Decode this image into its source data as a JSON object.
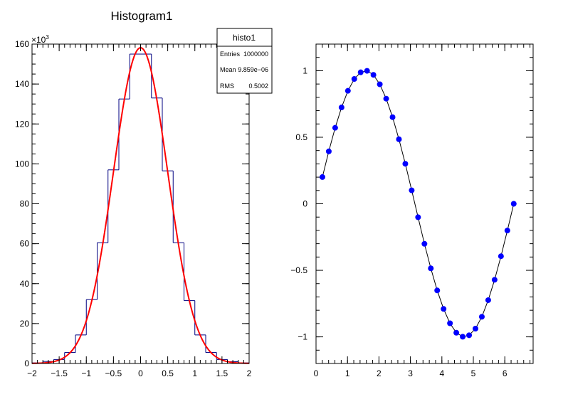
{
  "chart_data": [
    {
      "type": "bar",
      "title": "Histogram1",
      "histogram_color": "#000080",
      "fit_color": "#ff0000",
      "y_exponent_label": "×10",
      "y_exponent_power": "3",
      "xlim": [
        -2,
        2
      ],
      "ylim": [
        0,
        160
      ],
      "x_ticks": [
        -2,
        -1.5,
        -1,
        -0.5,
        0,
        0.5,
        1,
        1.5,
        2
      ],
      "x_tick_labels": [
        "−2",
        "−1.5",
        "−1",
        "−0.5",
        "0",
        "0.5",
        "1",
        "1.5",
        "2"
      ],
      "y_ticks": [
        0,
        20,
        40,
        60,
        80,
        100,
        120,
        140,
        160
      ],
      "y_tick_labels": [
        "0",
        "20",
        "40",
        "60",
        "80",
        "100",
        "120",
        "140",
        "160"
      ],
      "bins": {
        "edges": [
          -2,
          -1.8,
          -1.6,
          -1.4,
          -1.2,
          -1.0,
          -0.8,
          -0.6,
          -0.4,
          -0.2,
          0,
          0.2,
          0.4,
          0.6,
          0.8,
          1.0,
          1.2,
          1.4,
          1.6,
          1.8,
          2.0
        ],
        "values": [
          0.3,
          1.0,
          2.0,
          5.5,
          14.3,
          32.0,
          60.5,
          97.0,
          132.5,
          155.0,
          155.0,
          133.0,
          96.5,
          60.5,
          31.5,
          14.3,
          5.5,
          2.0,
          0.9,
          0.3
        ]
      },
      "fit": {
        "amplitude": 158.2,
        "mean": 0.0,
        "sigma": 0.5
      },
      "stats_box": {
        "name": "histo1",
        "rows": [
          {
            "label": "Entries",
            "value": "1000000"
          },
          {
            "label": "Mean",
            "value": "9.859e−06"
          },
          {
            "label": "RMS",
            "value": "0.5002"
          }
        ]
      }
    },
    {
      "type": "line",
      "title": "",
      "line_color": "#000000",
      "marker_color": "#0000ff",
      "xlim": [
        0,
        6.9
      ],
      "ylim": [
        -1.2,
        1.2
      ],
      "x_ticks": [
        0,
        1,
        2,
        3,
        4,
        5,
        6
      ],
      "x_tick_labels": [
        "0",
        "1",
        "2",
        "3",
        "4",
        "5",
        "6"
      ],
      "y_ticks": [
        -1,
        -0.5,
        0,
        0.5,
        1
      ],
      "y_tick_labels": [
        "−1",
        "−0.5",
        "0",
        "0.5",
        "1"
      ],
      "x": [
        0.2027,
        0.4054,
        0.6081,
        0.8108,
        1.0135,
        1.2162,
        1.4189,
        1.6216,
        1.8243,
        2.027,
        2.2297,
        2.4324,
        2.6351,
        2.8378,
        3.0405,
        3.2432,
        3.4459,
        3.6486,
        3.8513,
        4.054,
        4.2567,
        4.4594,
        4.6621,
        4.8648,
        5.0675,
        5.2702,
        5.4729,
        5.6756,
        5.8783,
        6.081,
        6.2837
      ],
      "y": [
        0.201,
        0.394,
        0.571,
        0.724,
        0.849,
        0.938,
        0.988,
        0.999,
        0.969,
        0.898,
        0.79,
        0.651,
        0.485,
        0.301,
        0.101,
        -0.101,
        -0.301,
        -0.485,
        -0.651,
        -0.79,
        -0.898,
        -0.969,
        -0.999,
        -0.988,
        -0.938,
        -0.849,
        -0.724,
        -0.571,
        -0.394,
        -0.201,
        0.0
      ]
    }
  ]
}
